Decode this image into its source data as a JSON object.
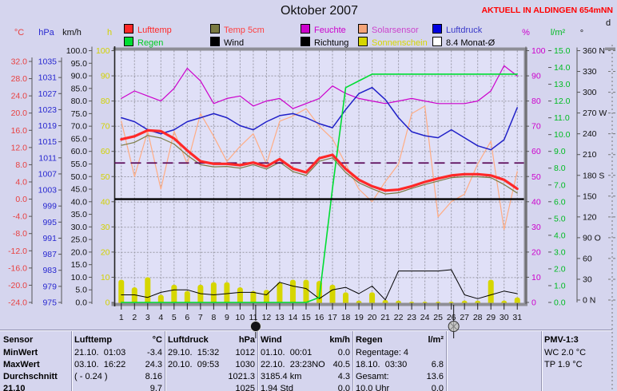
{
  "header": {
    "title": "Oktober 2007",
    "station_label": "AKTUELL IN ALDINGEN 654mNN",
    "station_color": "#ff0000"
  },
  "legend": {
    "rows": [
      [
        {
          "id": "lufttemp",
          "label": "Lufttemp",
          "box": "#ff2828",
          "text": "#ff2828"
        },
        {
          "id": "temp5cm",
          "label": "Temp 5cm",
          "box": "#7a7a42",
          "text": "#ff4040"
        },
        {
          "id": "feuchte",
          "label": "Feuchte",
          "box": "#cc00cc",
          "text": "#cc00cc"
        },
        {
          "id": "solarsensor",
          "label": "Solarsensor",
          "box": "#f4a478",
          "text": "#cc44cc"
        },
        {
          "id": "luftdruck",
          "label": "Luftdruck",
          "box": "#0000e0",
          "text": "#3838c8"
        }
      ],
      [
        {
          "id": "regen",
          "label": "Regen",
          "box": "#00dd33",
          "text": "#00cc22"
        },
        {
          "id": "wind",
          "label": "Wind",
          "box": "#000000",
          "text": "#000000"
        },
        {
          "id": "richtung",
          "label": "Richtung",
          "box": "#000000",
          "text": "#000000"
        },
        {
          "id": "sonnenschein",
          "label": "Sonnenschein",
          "box": "#d6d600",
          "text": "#d6d600"
        },
        {
          "id": "monatavg",
          "label": "8.4 Monat-Ø",
          "box": "#ffffff",
          "text": "#000000"
        }
      ]
    ]
  },
  "chart_data": {
    "type": "line",
    "title": "Oktober 2007",
    "x": {
      "label": "Tag",
      "days": [
        1,
        2,
        3,
        4,
        5,
        6,
        7,
        8,
        9,
        10,
        11,
        12,
        13,
        14,
        15,
        16,
        17,
        18,
        19,
        20,
        21,
        22,
        23,
        24,
        25,
        26,
        27,
        28,
        29,
        30,
        31
      ]
    },
    "grid": true,
    "axes": {
      "left": [
        {
          "id": "temp",
          "unit": "°C",
          "color": "#e84040",
          "min": -24,
          "max": 32,
          "step": 4,
          "decimals": 1
        },
        {
          "id": "hpa",
          "unit": "hPa",
          "color": "#2828d0",
          "min": 975,
          "max": 1035,
          "step": 4,
          "decimals": 0
        },
        {
          "id": "kmh",
          "unit": "km/h",
          "color": "#101010",
          "min": 0,
          "max": 100,
          "step": 5,
          "decimals": 1
        },
        {
          "id": "h",
          "unit": "h",
          "color": "#d2d200",
          "min": 0,
          "max": 100,
          "step": 10,
          "decimals": 0
        }
      ],
      "right": [
        {
          "id": "pct",
          "unit": "%",
          "color": "#cc00cc",
          "min": 0,
          "max": 100,
          "step": 10,
          "decimals": 0
        },
        {
          "id": "lm2",
          "unit": "l/m²",
          "color": "#00bb22",
          "min": 0,
          "max": 15,
          "step": 1,
          "decimals": 1
        },
        {
          "id": "dir",
          "unit": "°",
          "color": "#101010",
          "labels": [
            "360 N",
            "330",
            "300",
            "270 W",
            "240",
            "210",
            "180 S",
            "150",
            "120",
            "90 O",
            "60",
            "30",
            "0 N"
          ]
        },
        {
          "id": "d",
          "unit": "d",
          "color": "#101010"
        }
      ]
    },
    "series": [
      {
        "id": "sonnenschein",
        "name": "Sonnenschein",
        "type": "bar",
        "axis": "h",
        "color": "#d6d600",
        "layer": 1,
        "values": [
          9,
          6,
          10,
          3,
          7,
          4.5,
          7,
          8,
          8,
          6,
          4.5,
          5,
          8,
          9,
          9,
          8.5,
          7,
          4,
          0.7,
          4,
          1,
          0.7,
          0.3,
          0.3,
          0.3,
          0.3,
          0.7,
          0.7,
          9,
          0.7,
          2
        ]
      },
      {
        "id": "richtung",
        "name": "Richtung",
        "type": "line",
        "axis": "dir",
        "color": "#000000",
        "width": 1,
        "layer": 2,
        "values": [
          270,
          237,
          270,
          198,
          216,
          337,
          270,
          270,
          200,
          140,
          360,
          180,
          76,
          320,
          184,
          277,
          277,
          277,
          353,
          180,
          7,
          342,
          18,
          349,
          36,
          349,
          155,
          100,
          234,
          180,
          223
        ]
      },
      {
        "id": "wind",
        "name": "Wind",
        "type": "line",
        "axis": "kmh",
        "color": "#000000",
        "width": 1,
        "layer": 3,
        "values": [
          3,
          3,
          2,
          4,
          5,
          5,
          3.5,
          3,
          3.5,
          4,
          4,
          3,
          8,
          6.5,
          5.5,
          1.5,
          5,
          6,
          3.5,
          6.5,
          1,
          12.5,
          12.5,
          12.5,
          12.5,
          13,
          3,
          1.5,
          3,
          4.5,
          3.5
        ]
      },
      {
        "id": "solarsensor",
        "name": "Solarsensor",
        "type": "line",
        "axis": "pct",
        "color": "#ffac84",
        "width": 1.2,
        "layer": 4,
        "values": [
          72,
          50,
          68,
          45,
          68,
          55,
          75,
          66,
          56,
          62,
          67,
          55,
          72,
          74,
          77,
          70,
          65,
          55,
          45,
          40,
          48,
          55,
          75,
          78,
          34,
          40,
          43,
          55,
          64,
          29,
          52
        ]
      },
      {
        "id": "feuchte",
        "name": "Feuchte",
        "type": "line",
        "axis": "pct",
        "color": "#cc00cc",
        "width": 1.2,
        "layer": 5,
        "values": [
          81,
          84,
          82,
          80,
          85,
          93,
          88,
          79,
          81,
          82,
          78,
          80,
          81,
          77,
          79,
          81,
          86,
          83,
          81,
          80,
          79,
          80,
          81,
          80,
          79,
          79,
          79,
          80,
          84,
          94,
          90
        ]
      },
      {
        "id": "luftdruck",
        "name": "Luftdruck",
        "type": "line",
        "axis": "hpa",
        "color": "#2020c8",
        "width": 1.5,
        "layer": 6,
        "values": [
          1021,
          1020,
          1018,
          1017,
          1018,
          1020,
          1021,
          1022,
          1021,
          1019,
          1018,
          1020,
          1021.5,
          1022,
          1021,
          1019.5,
          1018.5,
          1023,
          1027,
          1028.5,
          1025.5,
          1021,
          1017.5,
          1016.5,
          1016,
          1018,
          1016,
          1014,
          1013,
          1015.5,
          1023.5
        ]
      },
      {
        "id": "temp5cm",
        "name": "Temp 5cm",
        "type": "line",
        "axis": "temp",
        "color": "#7a7a42",
        "width": 1.2,
        "layer": 7,
        "values": [
          12.5,
          13.2,
          14.8,
          14.2,
          12.8,
          10.2,
          8.0,
          7.5,
          7.6,
          7.2,
          8.0,
          7.0,
          8.6,
          6.4,
          5.5,
          8.8,
          9.6,
          6.2,
          3.8,
          2.4,
          1.2,
          1.5,
          2.5,
          3.4,
          4.2,
          5.0,
          5.2,
          5.2,
          5.0,
          3.4,
          1.4
        ]
      },
      {
        "id": "regen",
        "name": "Regen (kumuliert)",
        "type": "line",
        "axis": "lm2",
        "color": "#00dd33",
        "width": 1.6,
        "layer": 8,
        "values": [
          0,
          0,
          0,
          0,
          0,
          0,
          0,
          0,
          0,
          0,
          0,
          0,
          0,
          0,
          0,
          0.3,
          6.8,
          12.8,
          13.2,
          13.6,
          13.6,
          13.6,
          13.6,
          13.6,
          13.6,
          13.6,
          13.6,
          13.6,
          13.6,
          13.6,
          13.6
        ]
      },
      {
        "id": "lufttemp",
        "name": "Lufttemp",
        "type": "line",
        "axis": "temp",
        "color": "#ff2828",
        "width": 3.2,
        "layer": 11,
        "values": [
          13.9,
          14.6,
          16.0,
          15.8,
          14.1,
          11.3,
          8.8,
          8.2,
          8.2,
          7.9,
          8.5,
          7.6,
          9.3,
          7.1,
          6.2,
          9.5,
          10.3,
          7.0,
          4.5,
          3.0,
          2.0,
          2.2,
          3.0,
          4.0,
          4.8,
          5.5,
          5.8,
          5.8,
          5.5,
          4.5,
          2.4
        ]
      }
    ],
    "reference_lines": [
      {
        "id": "nulllinie",
        "label": "0 °C",
        "axis": "temp",
        "value": 0,
        "color": "#000000",
        "width": 2.4,
        "layer": 9
      },
      {
        "id": "monatavg",
        "label": "8.4 Monat-Ø",
        "axis": "temp",
        "value": 8.4,
        "color": "#5a0a5a",
        "width": 1.8,
        "dash": "13,7",
        "layer": 10
      }
    ],
    "moons": [
      {
        "day": 11,
        "phase": "new"
      },
      {
        "day": 26,
        "phase": "full"
      }
    ]
  },
  "table": {
    "row_labels": [
      "Sensor",
      "MinWert",
      "MaxWert",
      "Durchschnitt",
      "21.10"
    ],
    "columns": [
      {
        "id": "sensor",
        "header": "Sensor",
        "unit": "",
        "bold": true,
        "rows": [
          [
            "MinWert",
            ""
          ],
          [
            "MaxWert",
            ""
          ],
          [
            "Durchschnitt",
            ""
          ],
          [
            "21.10",
            ""
          ]
        ]
      },
      {
        "id": "lufttemp",
        "header": "Lufttemp",
        "unit": "°C",
        "rows": [
          [
            "21.10.  01:03",
            "-3.4"
          ],
          [
            "03.10.  16:22",
            "24.3"
          ],
          [
            "( - 0.24 )",
            "8.16"
          ],
          [
            "",
            "9.7"
          ]
        ]
      },
      {
        "id": "luftdruck",
        "header": "Luftdruck",
        "unit": "hPa",
        "rows": [
          [
            "29.10.  15:32",
            "1012"
          ],
          [
            "20.10.  09:53",
            "1030"
          ],
          [
            "",
            "1021.3"
          ],
          [
            "",
            "1025"
          ]
        ]
      },
      {
        "id": "wind",
        "header": "Wind",
        "unit": "km/h",
        "rows": [
          [
            "01.10.  00:01",
            "0.0"
          ],
          [
            "22.10.  23:23NO",
            "40.5"
          ],
          [
            "3185.4 km",
            "4.3"
          ],
          [
            "1.94 Std",
            "0.0"
          ]
        ]
      },
      {
        "id": "regen",
        "header": "Regen",
        "unit": "l/m²",
        "rows": [
          [
            "Regentage: 4",
            ""
          ],
          [
            "18.10.  03:30",
            "6.8"
          ],
          [
            "Gesamt:",
            "13.6"
          ],
          [
            "10.0 Uhr",
            "0.0"
          ]
        ]
      },
      {
        "id": "leer",
        "header": "",
        "unit": "",
        "rows": [
          [
            "",
            ""
          ],
          [
            "",
            ""
          ],
          [
            "",
            ""
          ],
          [
            "",
            ""
          ]
        ]
      },
      {
        "id": "pmv",
        "header": "PMV-1:3",
        "unit": "",
        "rows": [
          [
            "WC 2.0 °C",
            ""
          ],
          [
            "TP 1.9 °C",
            ""
          ],
          [
            "",
            ""
          ],
          [
            "",
            ""
          ]
        ]
      }
    ]
  }
}
